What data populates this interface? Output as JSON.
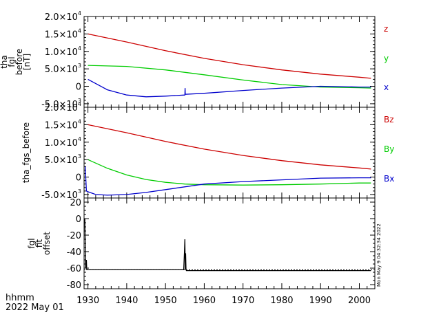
{
  "chart_data": [
    {
      "type": "line",
      "ylabel_lines": [
        "tha",
        "fgl",
        "before",
        "[nT]"
      ],
      "ylim": [
        -6000,
        20000
      ],
      "ytick_labels": [
        {
          "value": 20000,
          "mant": "2.0×10",
          "exp": "4"
        },
        {
          "value": 15000,
          "mant": "1.5×10",
          "exp": "4"
        },
        {
          "value": 10000,
          "mant": "1.0×10",
          "exp": "4"
        },
        {
          "value": 5000,
          "mant": "5.0×10",
          "exp": "3"
        },
        {
          "value": 0,
          "mant": "0",
          "exp": ""
        },
        {
          "value": -5000,
          "mant": "-5.0×10",
          "exp": "3"
        }
      ],
      "minor_step": 1000,
      "series": [
        {
          "name": "z",
          "color": "#cc0000",
          "x": [
            1930,
            1940,
            1950,
            1960,
            1970,
            1980,
            1990,
            2000,
            2003
          ],
          "values": [
            15000,
            12700,
            10200,
            8000,
            6200,
            4700,
            3500,
            2600,
            2300
          ]
        },
        {
          "name": "y",
          "color": "#00cc00",
          "x": [
            1930,
            1940,
            1950,
            1960,
            1970,
            1980,
            1990,
            2000,
            2003
          ],
          "values": [
            6000,
            5700,
            4700,
            3300,
            1800,
            500,
            -200,
            -400,
            -500
          ]
        },
        {
          "name": "x",
          "color": "#0000cc",
          "x": [
            1930,
            1935,
            1940,
            1945,
            1950,
            1955,
            1955.0,
            1955.05,
            1955.1,
            1960,
            1970,
            1980,
            1990,
            2000,
            2003
          ],
          "values": [
            2000,
            -1000,
            -2500,
            -3000,
            -2800,
            -2500,
            -2500,
            -500,
            -2300,
            -2000,
            -1200,
            -500,
            0,
            -200,
            -200
          ]
        }
      ]
    },
    {
      "type": "line",
      "ylabel_lines": [
        "tha_fgs_before"
      ],
      "ylim": [
        -6000,
        20000
      ],
      "ytick_labels": [
        {
          "value": 20000,
          "mant": "2.0×10",
          "exp": "4"
        },
        {
          "value": 15000,
          "mant": "1.5×10",
          "exp": "4"
        },
        {
          "value": 10000,
          "mant": "1.0×10",
          "exp": "4"
        },
        {
          "value": 5000,
          "mant": "5.0×10",
          "exp": "3"
        },
        {
          "value": 0,
          "mant": "0",
          "exp": ""
        },
        {
          "value": -5000,
          "mant": "-5.0×10",
          "exp": "3"
        }
      ],
      "minor_step": 1000,
      "series": [
        {
          "name": "Bz",
          "color": "#cc0000",
          "x": [
            1930,
            1940,
            1950,
            1960,
            1970,
            1980,
            1990,
            2000,
            2003
          ],
          "values": [
            15000,
            12700,
            10200,
            8000,
            6200,
            4700,
            3500,
            2600,
            2300
          ]
        },
        {
          "name": "By",
          "color": "#00cc00",
          "x": [
            1930,
            1935,
            1940,
            1945,
            1950,
            1955,
            1960,
            1970,
            1980,
            1990,
            2000,
            2003
          ],
          "values": [
            5000,
            2500,
            600,
            -700,
            -1500,
            -2000,
            -2200,
            -2300,
            -2200,
            -2000,
            -1700,
            -1700
          ]
        },
        {
          "name": "Bx",
          "color": "#0000cc",
          "x": [
            1929.3,
            1929.6,
            1930,
            1932,
            1935,
            1940,
            1945,
            1950,
            1960,
            1970,
            1980,
            1990,
            2000,
            2003
          ],
          "values": [
            3000,
            -4000,
            -4200,
            -5000,
            -5200,
            -5000,
            -4400,
            -3600,
            -2000,
            -1300,
            -800,
            -300,
            -200,
            -200
          ]
        }
      ]
    },
    {
      "type": "line",
      "ylabel_lines": [
        "fgl",
        "fit",
        "offset"
      ],
      "ylim": [
        -85,
        25
      ],
      "ytick_labels": [
        {
          "value": 20,
          "mant": "20",
          "exp": ""
        },
        {
          "value": 0,
          "mant": "0",
          "exp": ""
        },
        {
          "value": -20,
          "mant": "-20",
          "exp": ""
        },
        {
          "value": -40,
          "mant": "-40",
          "exp": ""
        },
        {
          "value": -60,
          "mant": "-60",
          "exp": ""
        },
        {
          "value": -80,
          "mant": "-80",
          "exp": ""
        }
      ],
      "minor_step": 5,
      "series": [
        {
          "name": "",
          "color": "#000000",
          "x": [
            1929.2,
            1929.4,
            1929.6,
            1929.7,
            1930,
            1940,
            1950,
            1954,
            1954.6,
            1954.7,
            1954.9,
            1955.0,
            1955.1,
            1955.2,
            1955.3,
            1955.4,
            1955.6,
            1960,
            1970,
            1980,
            1990,
            2000,
            2003
          ],
          "values": [
            0,
            -60,
            -50,
            -62,
            -62,
            -62,
            -62,
            -62,
            -62,
            -62,
            -40,
            -25,
            -62,
            -42,
            -62,
            -63,
            -63,
            -63,
            -63,
            -63,
            -63,
            -63,
            -63
          ]
        }
      ]
    }
  ],
  "x_axis": {
    "xlim": [
      1929,
      2004
    ],
    "ticks": [
      1930,
      1940,
      1950,
      1960,
      1970,
      1980,
      1990,
      2000
    ],
    "tick_labels": [
      "1930",
      "1940",
      "1950",
      "1960",
      "1970",
      "1980",
      "1990",
      "2000"
    ],
    "minor_step": 2
  },
  "footer": {
    "unit_label": "hhmm",
    "date_label": "2022 May 01",
    "timestamp": "Mon May  9 04:32:34 2022"
  },
  "legend": {
    "panel1": [
      "z",
      "y",
      "x"
    ],
    "panel2": [
      "Bz",
      "By",
      "Bx"
    ]
  }
}
